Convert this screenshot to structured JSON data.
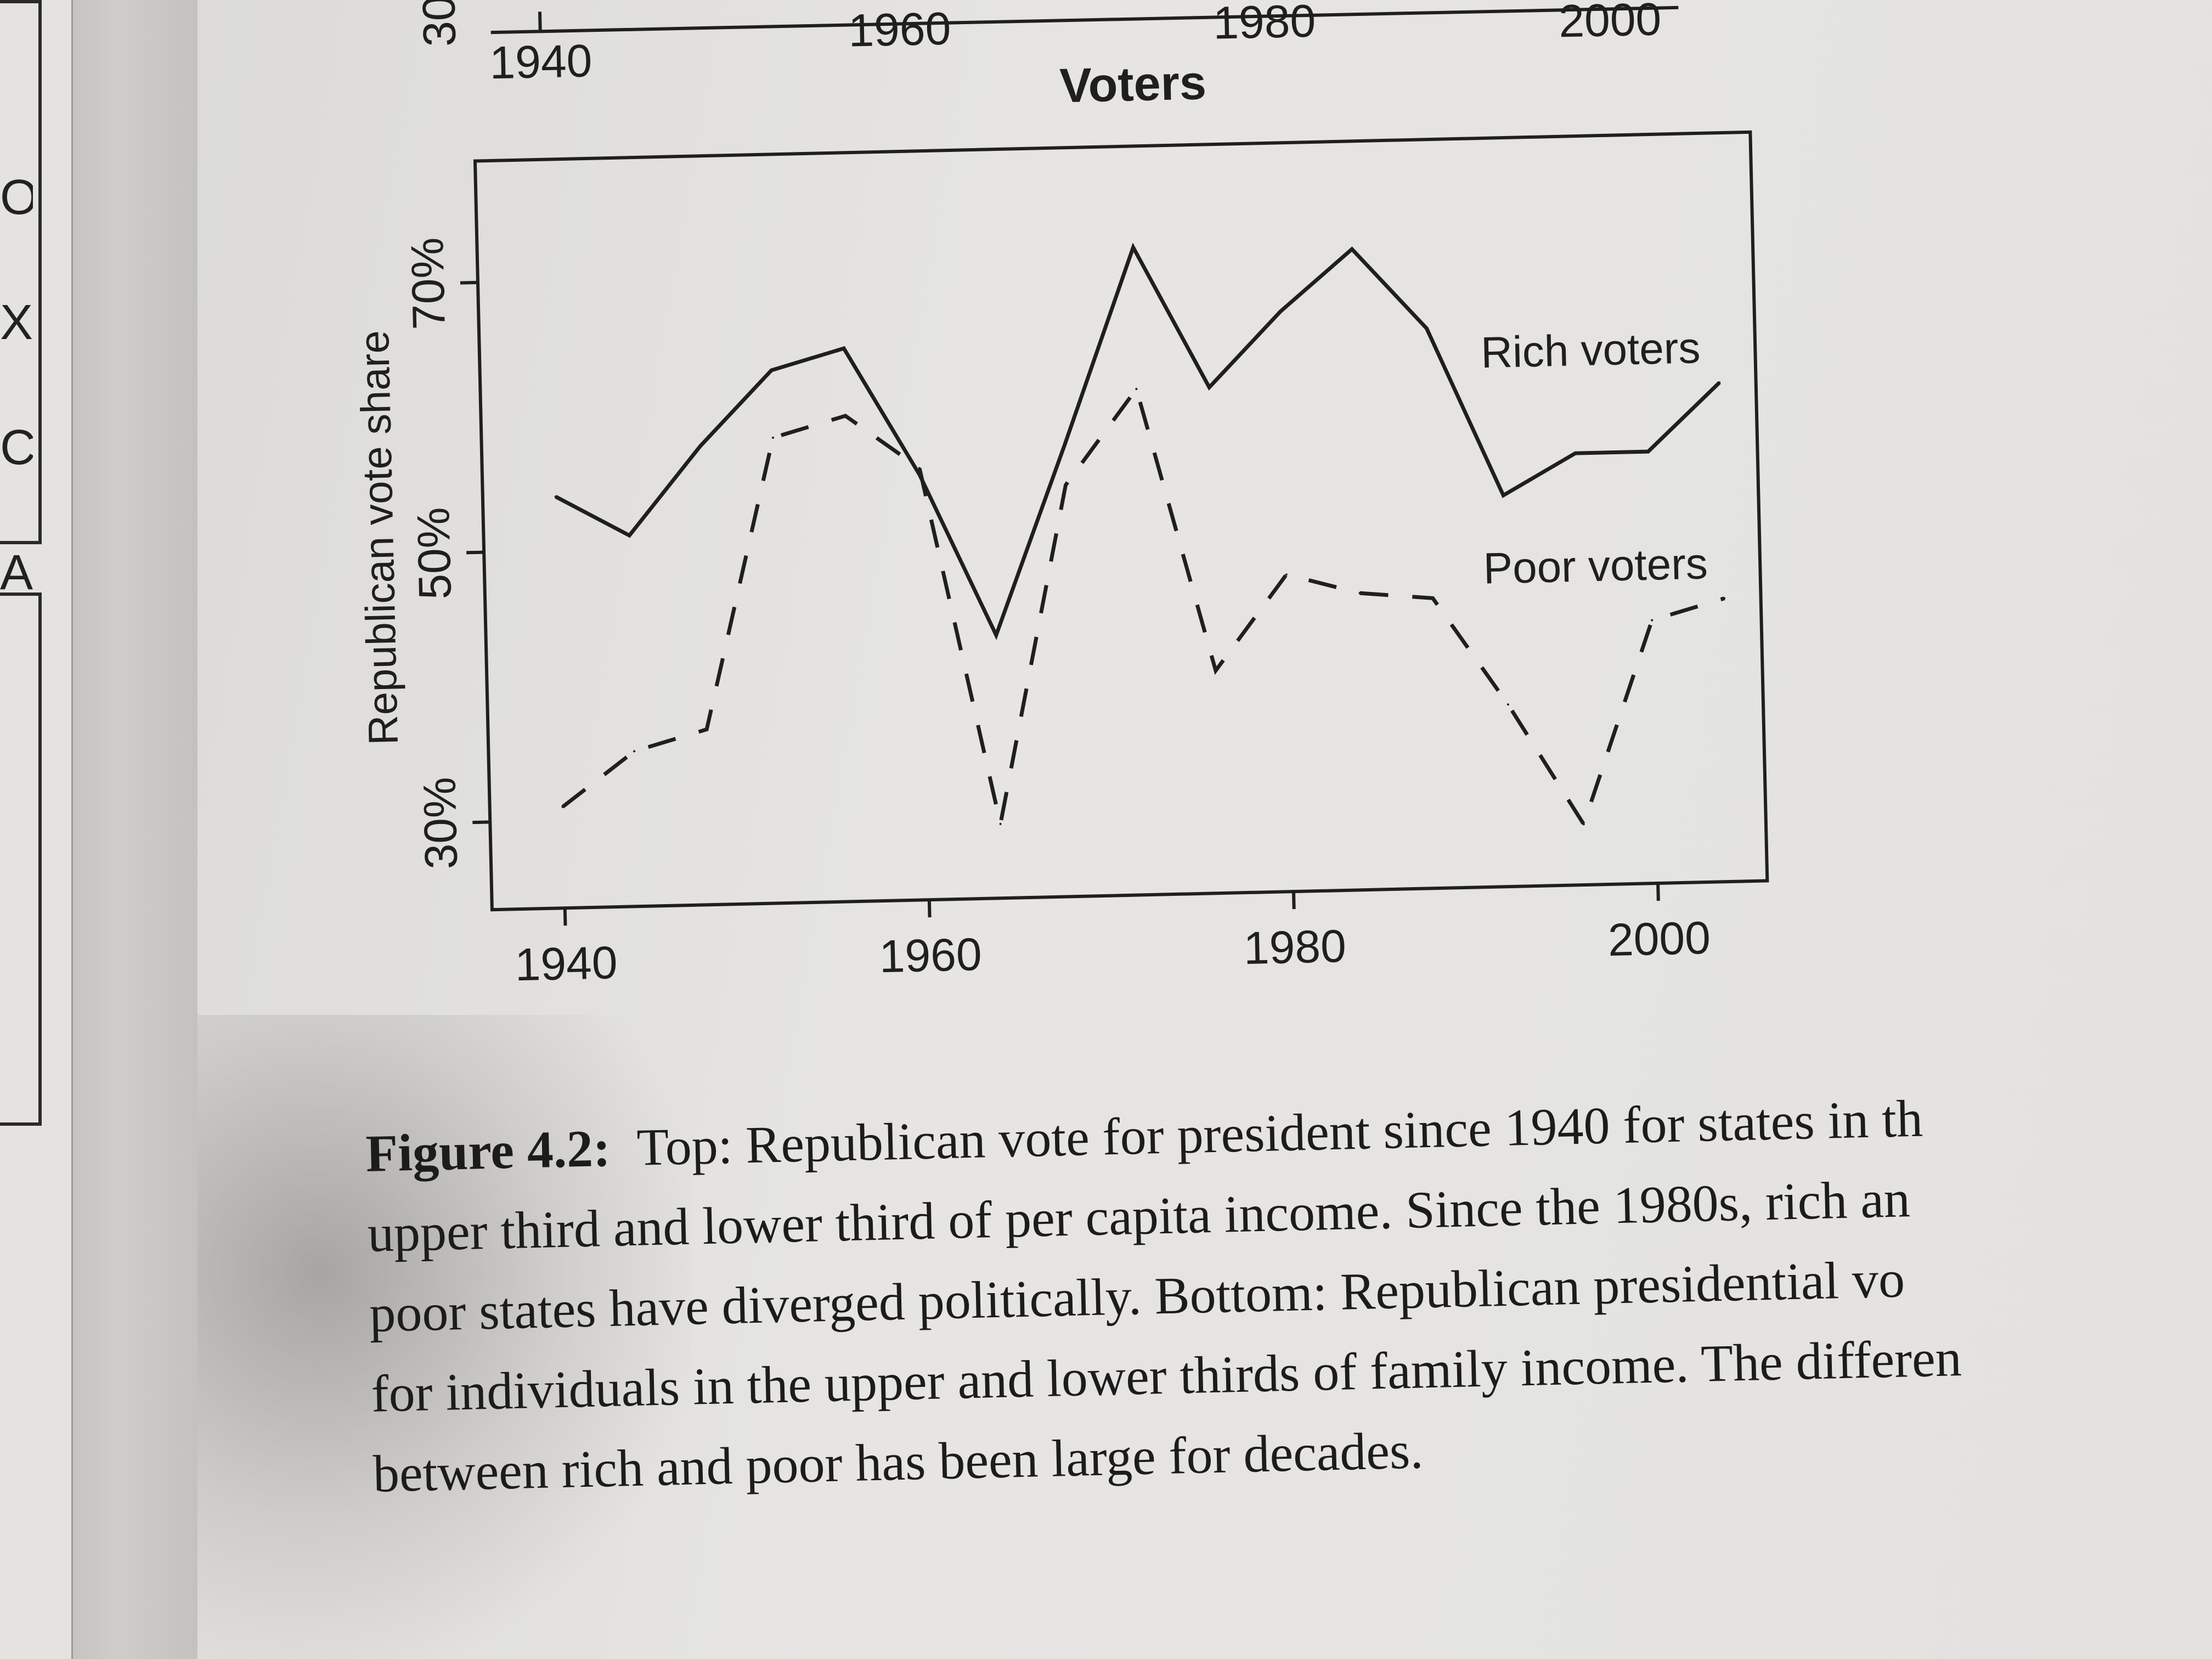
{
  "left_page": {
    "letters": [
      "OK",
      "X",
      "C",
      "A"
    ]
  },
  "top_panel": {
    "x_ticks": [
      "1940",
      "1960",
      "1980",
      "2000"
    ],
    "y_tick_partial": "30"
  },
  "chart_data": {
    "type": "line",
    "title": "Voters",
    "xlabel": "",
    "ylabel": "Republican vote share",
    "x_ticks": [
      1940,
      1960,
      1980,
      2000
    ],
    "y_ticks": [
      {
        "value": 30,
        "label": "30%"
      },
      {
        "value": 50,
        "label": "50%"
      },
      {
        "value": 70,
        "label": "70%"
      }
    ],
    "xlim": [
      1936,
      2006
    ],
    "ylim": [
      23.5,
      79
    ],
    "grid": false,
    "x": [
      1940,
      1944,
      1948,
      1952,
      1956,
      1960,
      1964,
      1968,
      1972,
      1976,
      1980,
      1984,
      1988,
      1992,
      1996,
      2000,
      2004
    ],
    "series": [
      {
        "name": "Rich voters",
        "style": "solid",
        "values": [
          54,
          51,
          57.5,
          63,
          64.5,
          55,
          43,
          57,
          71.5,
          61,
          66.5,
          71,
          65,
          52.5,
          55.5,
          55.5,
          60.5
        ]
      },
      {
        "name": "Poor voters",
        "style": "dashed",
        "values": [
          31,
          35,
          36.5,
          58,
          59.5,
          55.5,
          29,
          54,
          61,
          40,
          47,
          45.5,
          45,
          37,
          28,
          43,
          44.5
        ]
      }
    ]
  },
  "caption": {
    "label": "Figure 4.2:",
    "lines": [
      "Top: Republican vote for president since 1940 for states in th",
      "upper third and lower third of per capita income. Since the 1980s, rich an",
      "poor states have diverged politically. Bottom: Republican presidential vo",
      "for individuals in the upper and lower thirds of family income. The differen",
      "between rich and poor has been large for decades."
    ]
  },
  "colors": {
    "ink": "#1f1f1f",
    "paper": "#e4e3e0"
  }
}
